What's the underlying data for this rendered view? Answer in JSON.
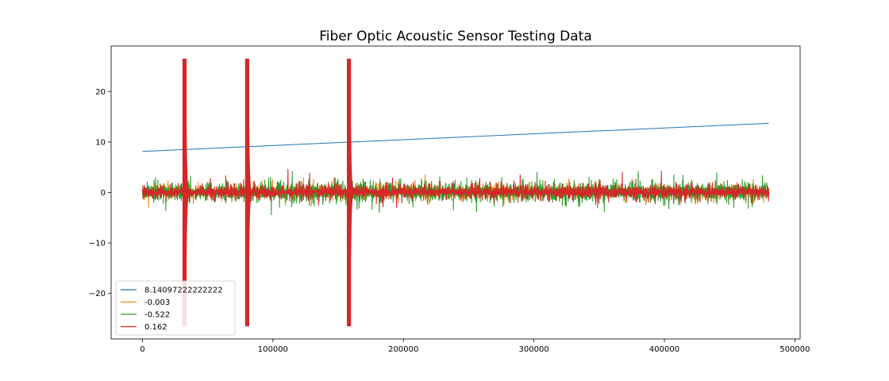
{
  "chart_data": {
    "type": "line",
    "title": "Fiber Optic Acoustic Sensor Testing Data",
    "xlabel": "",
    "ylabel": "",
    "xlim": [
      -24000,
      504000
    ],
    "ylim": [
      -29,
      29
    ],
    "xticks": [
      0,
      100000,
      200000,
      300000,
      400000,
      500000
    ],
    "xtick_labels": [
      "0",
      "100000",
      "200000",
      "300000",
      "400000",
      "500000"
    ],
    "yticks": [
      -20,
      -10,
      0,
      10,
      20
    ],
    "ytick_labels": [
      "−20",
      "−10",
      "0",
      "10",
      "20"
    ],
    "grid": false,
    "legend_position": "lower-left",
    "x_range": [
      0,
      480000
    ],
    "series": [
      {
        "name": "8.14097222222222",
        "color": "#1f77b4",
        "kind": "linear",
        "x": [
          0,
          480000
        ],
        "y": [
          8.14,
          13.7
        ]
      },
      {
        "name": "-0.003",
        "color": "#ff7f0e",
        "kind": "noise",
        "baseline": 0.1,
        "noise_amplitude": 1.1,
        "spikes": []
      },
      {
        "name": "-0.522",
        "color": "#2ca02c",
        "kind": "noise",
        "baseline": 0.1,
        "noise_amplitude": 1.6,
        "spikes": []
      },
      {
        "name": "0.162",
        "color": "#d62728",
        "kind": "noise",
        "baseline": 0.1,
        "noise_amplitude": 1.2,
        "spikes": [
          {
            "x_start": 31000,
            "x_end": 33500,
            "min": -26.5,
            "max": 26.5
          },
          {
            "x_start": 79000,
            "x_end": 81500,
            "min": -26.5,
            "max": 26.5
          },
          {
            "x_start": 157000,
            "x_end": 159500,
            "min": -26.5,
            "max": 26.5
          }
        ]
      }
    ]
  }
}
